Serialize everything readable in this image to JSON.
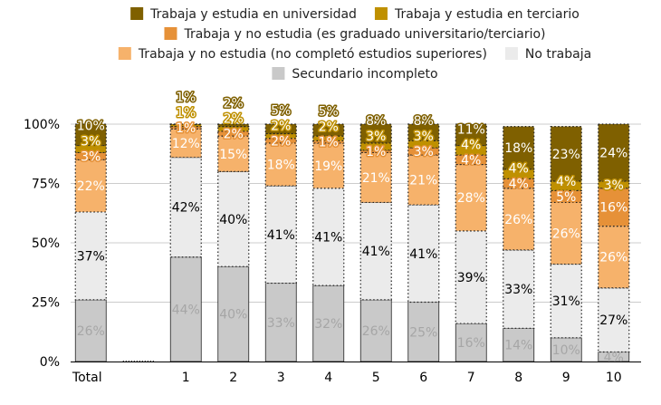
{
  "chart_data": {
    "type": "bar",
    "stacked": true,
    "categories": [
      "Total",
      "",
      "1",
      "2",
      "3",
      "4",
      "5",
      "6",
      "7",
      "8",
      "9",
      "10"
    ],
    "ylim": [
      0,
      100
    ],
    "yticks": [
      "0%",
      "25%",
      "50%",
      "75%",
      "100%"
    ],
    "ytick_values": [
      0,
      25,
      50,
      75,
      100
    ],
    "grid": true,
    "legend_position": "top",
    "series": [
      {
        "name": "Secundario incompleto",
        "color": "#c9c9c9",
        "label_color": "#a6a6a6",
        "values": [
          26,
          0,
          44,
          40,
          33,
          32,
          26,
          25,
          16,
          14,
          10,
          4
        ]
      },
      {
        "name": "No trabaja",
        "color": "#ebebeb",
        "label_color": "#000000",
        "values": [
          37,
          0,
          42,
          40,
          41,
          41,
          41,
          41,
          39,
          33,
          31,
          27
        ]
      },
      {
        "name": "Trabaja y no estudia (no completó estudios superiores)",
        "color": "#f6b26b",
        "label_color": "#ffffff",
        "values": [
          22,
          0,
          12,
          15,
          18,
          19,
          21,
          21,
          28,
          26,
          26,
          26
        ]
      },
      {
        "name": "Trabaja y no estudia (es graduado universitario/terciario)",
        "color": "#e69138",
        "label_color": "#ffffff",
        "values": [
          3,
          0,
          1,
          2,
          2,
          1,
          1,
          3,
          4,
          4,
          5,
          16
        ]
      },
      {
        "name": "Trabaja y estudia en terciario",
        "color": "#bf9000",
        "label_color": "#ffffff",
        "values": [
          3,
          0,
          1,
          2,
          2,
          2,
          3,
          3,
          4,
          4,
          4,
          3
        ]
      },
      {
        "name": "Trabaja y estudia en universidad",
        "color": "#7f6000",
        "label_color": "#ffffff",
        "values": [
          10,
          0,
          1,
          2,
          5,
          5,
          8,
          8,
          11,
          18,
          23,
          24
        ]
      }
    ]
  }
}
